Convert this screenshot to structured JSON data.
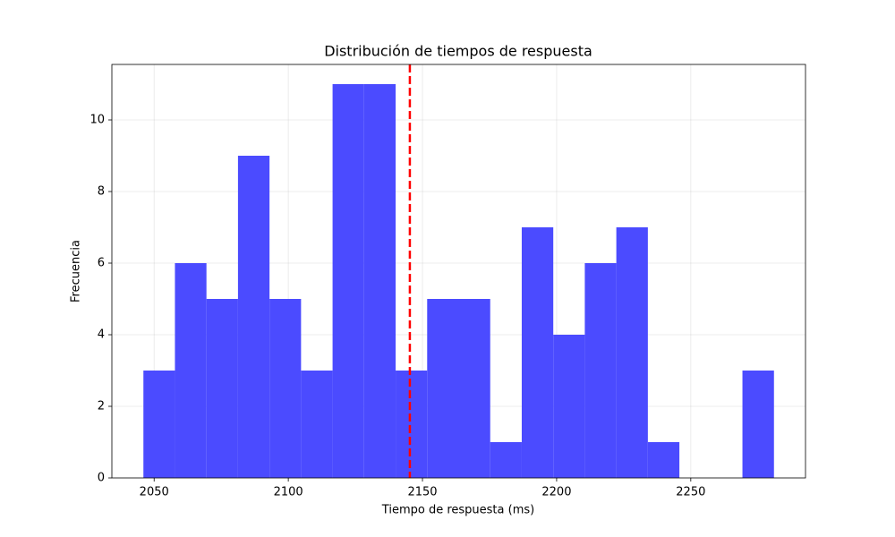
{
  "chart_data": {
    "type": "histogram",
    "title": "Distribución de tiempos de respuesta",
    "xlabel": "Tiempo de respuesta (ms)",
    "ylabel": "Frecuencia",
    "bins": [
      2046,
      2057.75,
      2069.5,
      2081.25,
      2093,
      2104.75,
      2116.5,
      2128.25,
      2140,
      2151.75,
      2163.5,
      2175.25,
      2187,
      2198.75,
      2210.5,
      2222.25,
      2234,
      2245.75,
      2257.5,
      2269.25,
      2281
    ],
    "values": [
      3,
      6,
      5,
      9,
      5,
      3,
      11,
      11,
      3,
      5,
      5,
      1,
      7,
      4,
      6,
      7,
      1,
      0,
      0,
      3
    ],
    "color": "#4b4bff",
    "vline": {
      "value": 2145.3,
      "color": "#ff0000"
    },
    "xlim": [
      2034.25,
      2292.75
    ],
    "xticks": [
      2050,
      2100,
      2150,
      2200,
      2250
    ],
    "ylim": [
      0,
      11.55
    ],
    "yticks": [
      0,
      2,
      4,
      6,
      8,
      10
    ],
    "grid": true
  }
}
